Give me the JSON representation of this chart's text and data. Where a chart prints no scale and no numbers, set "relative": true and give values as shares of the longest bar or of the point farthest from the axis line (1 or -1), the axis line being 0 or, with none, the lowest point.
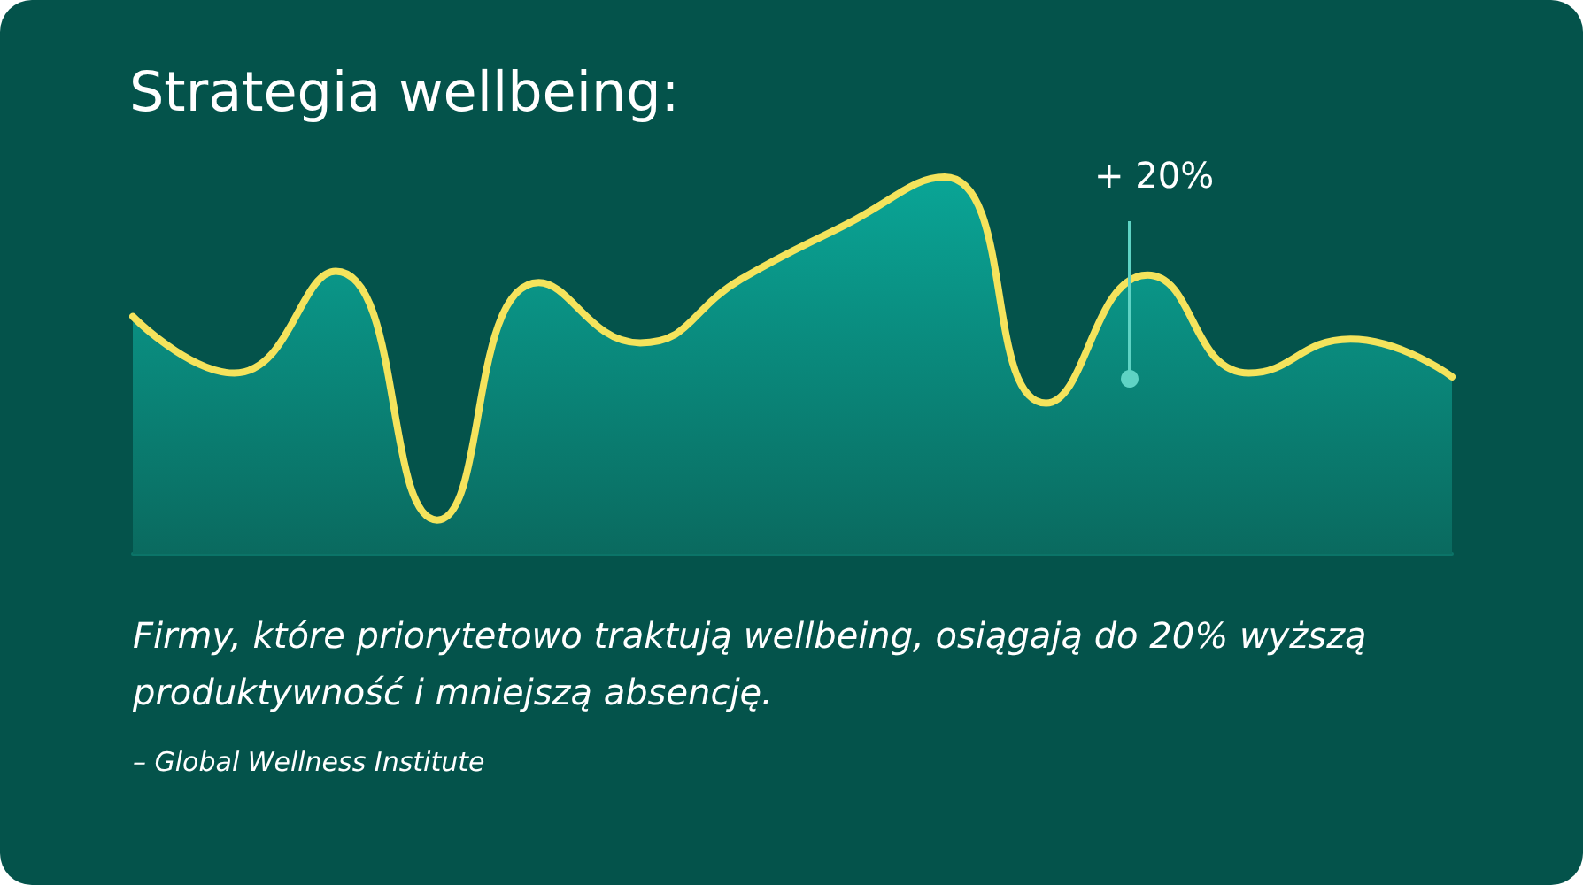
{
  "chart_data": {
    "type": "area",
    "title": "Strategia wellbeing:",
    "relative": true,
    "categories": [
      null,
      null,
      null,
      null,
      null,
      null,
      null,
      null,
      null,
      null,
      null,
      null,
      null,
      null
    ],
    "series": [
      {
        "color": "#f4e35c",
        "values": [
          0.63,
          0.48,
          0.75,
          0.09,
          0.72,
          0.56,
          0.73,
          0.87,
          1,
          0.4,
          0.74,
          0.48,
          0.57,
          0.47
        ]
      }
    ],
    "annotations": [
      "+ 20%",
      "Firmy, które priorytetowo traktują wellbeing, osiągają do 20% wyższą produktywność i mniejszą absencję.",
      "– Global Wellness Institute"
    ],
    "grid": false,
    "marker": "none",
    "line_style": "solid"
  }
}
